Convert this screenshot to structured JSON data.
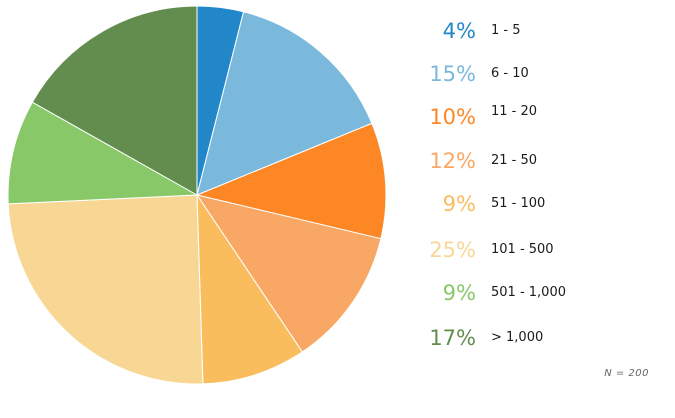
{
  "chart_data": {
    "type": "pie",
    "categories": [
      "1 - 5",
      "6 - 10",
      "11 - 20",
      "21 - 50",
      "51 - 100",
      "101 - 500",
      "501 - 1,000",
      "> 1,000"
    ],
    "values": [
      4,
      15,
      10,
      12,
      9,
      25,
      9,
      17
    ],
    "value_labels": [
      "4%",
      "15%",
      "10%",
      "12%",
      "9%",
      "25%",
      "9%",
      "17%"
    ],
    "colors": [
      "#2287c9",
      "#7ab9db",
      "#fd8725",
      "#f9a764",
      "#f9bd5e",
      "#f8d795",
      "#88c868",
      "#628d4e"
    ],
    "note": "N = 200",
    "legend_position": "right"
  }
}
